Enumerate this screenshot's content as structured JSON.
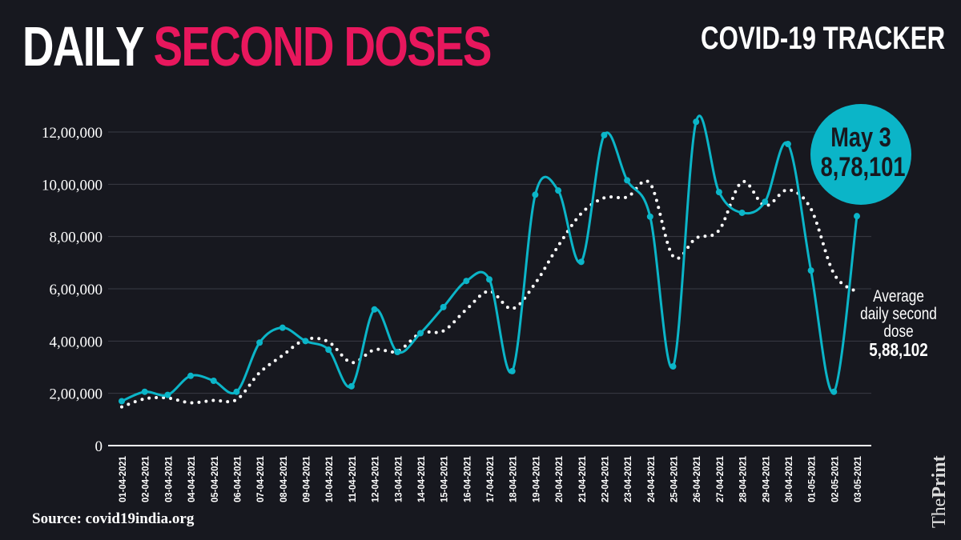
{
  "header": {
    "title_white": "DAILY",
    "title_pink": "SECOND DOSES",
    "tracker": "COVID-19 TRACKER"
  },
  "callout": {
    "date": "May 3",
    "value": "8,78,101"
  },
  "average_note": {
    "label": "Average daily second dose",
    "value": "5,88,102"
  },
  "source": "Source: covid19india.org",
  "logo": {
    "the": "The",
    "print": "Print"
  },
  "colors": {
    "background": "#17181f",
    "line": "#0bb5c8",
    "title_accent": "#e8175d",
    "average": "#ffffff"
  },
  "chart_data": {
    "type": "line",
    "title": "DAILY SECOND DOSES",
    "xlabel": "",
    "ylabel": "",
    "ylim": [
      0,
      1200000
    ],
    "y_ticks": [
      0,
      200000,
      400000,
      600000,
      800000,
      1000000,
      1200000
    ],
    "y_tick_labels": [
      "0",
      "2,00,000",
      "4,00,000",
      "6,00,000",
      "8,00,000",
      "10,00,000",
      "12,00,000"
    ],
    "grid": true,
    "categories": [
      "01-04-2021",
      "02-04-2021",
      "03-04-2021",
      "04-04-2021",
      "05-04-2021",
      "06-04-2021",
      "07-04-2021",
      "08-04-2021",
      "09-04-2021",
      "10-04-2021",
      "11-04-2021",
      "12-04-2021",
      "13-04-2021",
      "14-04-2021",
      "15-04-2021",
      "16-04-2021",
      "17-04-2021",
      "18-04-2021",
      "19-04-2021",
      "20-04-2021",
      "21-04-2021",
      "22-04-2021",
      "23-04-2021",
      "24-04-2021",
      "25-04-2021",
      "26-04-2021",
      "27-04-2021",
      "28-04-2021",
      "29-04-2021",
      "30-04-2021",
      "01-05-2021",
      "02-05-2021",
      "03-05-2021"
    ],
    "series": [
      {
        "name": "Daily second doses",
        "style": "solid",
        "values": [
          170000,
          206000,
          194000,
          267000,
          248000,
          206000,
          394000,
          451000,
          400000,
          367000,
          227000,
          521000,
          358000,
          430000,
          530000,
          630000,
          636000,
          285000,
          960000,
          976000,
          703000,
          1188000,
          1015000,
          876000,
          303000,
          1239000,
          970000,
          891000,
          933000,
          1154000,
          670000,
          206000,
          878101
        ]
      },
      {
        "name": "Average daily second dose",
        "style": "dotted",
        "values": [
          148000,
          179000,
          182000,
          164000,
          173000,
          176000,
          279000,
          345000,
          406000,
          397000,
          318000,
          367000,
          361000,
          430000,
          439000,
          521000,
          591000,
          524000,
          621000,
          764000,
          888000,
          948000,
          951000,
          1003000,
          724000,
          794000,
          824000,
          1009000,
          918000,
          979000,
          906000,
          658000,
          588102
        ]
      }
    ]
  }
}
